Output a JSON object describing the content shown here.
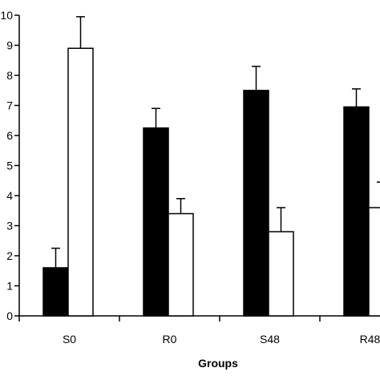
{
  "chart_data": {
    "type": "bar",
    "categories": [
      "S0",
      "R0",
      "S48",
      "R48"
    ],
    "xlabel": "Groups",
    "ylabel": "",
    "ylim": [
      0,
      10
    ],
    "y_ticks": [
      0,
      1,
      2,
      3,
      4,
      5,
      6,
      7,
      8,
      9,
      10
    ],
    "grid": false,
    "legend": "none",
    "colors": {
      "series1": "#000000",
      "series2": "#ffffff",
      "outline": "#000000"
    },
    "series": [
      {
        "values": [
          1.6,
          6.25,
          7.5,
          6.95
        ],
        "errors": [
          0.65,
          0.65,
          0.8,
          0.6
        ]
      },
      {
        "values": [
          8.9,
          3.4,
          2.8,
          3.6
        ],
        "errors": [
          1.05,
          0.5,
          0.8,
          0.85
        ]
      }
    ]
  }
}
